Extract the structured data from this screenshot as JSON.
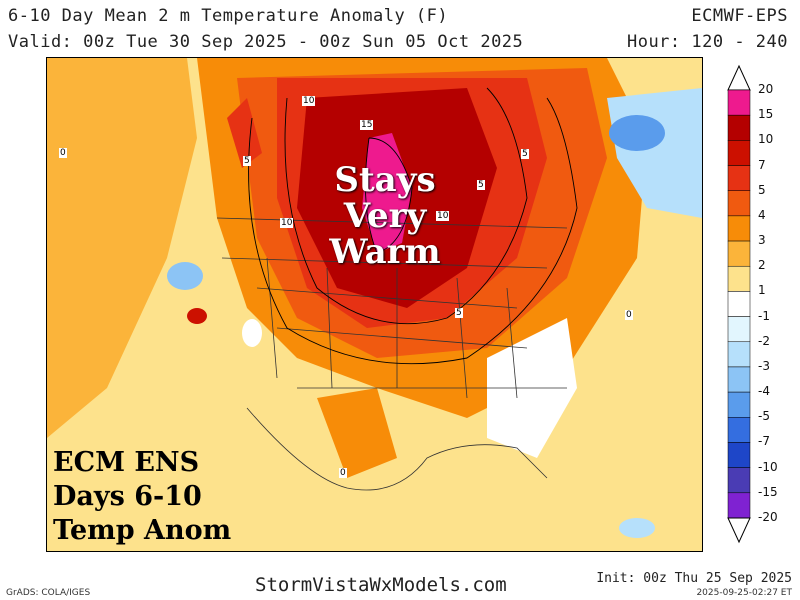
{
  "header": {
    "title": "6-10 Day Mean 2 m Temperature Anomaly (F)",
    "model": "ECMWF-EPS",
    "valid": "Valid: 00z Tue 30 Sep 2025 - 00z Sun 05 Oct 2025",
    "hour": "Hour: 120 - 240"
  },
  "overlay": {
    "line1": "Stays",
    "line2": "Very",
    "line3": "Warm"
  },
  "corner": {
    "line1": "ECM ENS",
    "line2": "Days 6-10",
    "line3": "Temp Anom"
  },
  "contour_labels": [
    "10",
    "15",
    "5",
    "5",
    "5",
    "10",
    "10",
    "5",
    "0",
    "0",
    "0"
  ],
  "colorbar": {
    "labels": [
      "20",
      "15",
      "10",
      "7",
      "5",
      "4",
      "3",
      "2",
      "1",
      "-1",
      "-2",
      "-3",
      "-4",
      "-5",
      "-7",
      "-10",
      "-15",
      "-20"
    ],
    "colors": [
      "#ee1a8e",
      "#b40000",
      "#cc1000",
      "#e63214",
      "#f05a10",
      "#f78c08",
      "#fbb43a",
      "#fde28c",
      "#ffffff",
      "#e2f6fe",
      "#b6e0fb",
      "#8cc4f5",
      "#5a9cec",
      "#346ee0",
      "#1e46c8",
      "#4a3cb4",
      "#7f22d2"
    ]
  },
  "footer": {
    "grads": "GrADS: COLA/IGES",
    "site": "StormVistaWxModels.com",
    "init": "Init: 00z Thu 25 Sep 2025",
    "stamp": "2025-09-25-02:27 ET"
  }
}
